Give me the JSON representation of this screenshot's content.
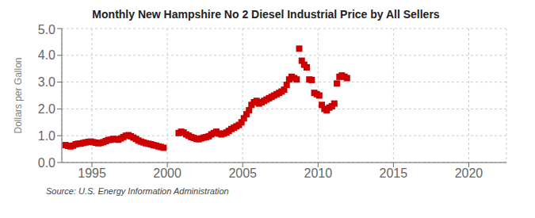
{
  "chart_data": {
    "type": "scatter",
    "title": "Monthly New Hampshire No 2 Diesel Industrial Price by All Sellers",
    "ylabel": "Dollars per Gallon",
    "annotations": [
      "Source: U.S. Energy Information Administration"
    ],
    "color": "#CC0000",
    "marker": "square",
    "grid": true,
    "xlim": [
      1993.0,
      2022.5
    ],
    "xticks": [
      1995,
      2000,
      2005,
      2010,
      2015,
      2020
    ],
    "ylim": [
      0.0,
      5.0
    ],
    "yticks": [
      {
        "value": 0.0,
        "label": "0.0"
      },
      {
        "value": 1.0,
        "label": "1.0"
      },
      {
        "value": 2.0,
        "label": "2.0"
      },
      {
        "value": 3.0,
        "label": "3.0"
      },
      {
        "value": 4.0,
        "label": "4.0"
      },
      {
        "value": 5.0,
        "label": "5.0"
      }
    ],
    "x": [
      1993.25,
      1993.42,
      1993.58,
      1993.75,
      1993.92,
      1994.08,
      1994.25,
      1994.42,
      1994.58,
      1994.75,
      1994.92,
      1995.08,
      1995.25,
      1995.42,
      1995.58,
      1995.75,
      1995.92,
      1996.08,
      1996.25,
      1996.42,
      1996.58,
      1996.75,
      1996.92,
      1997.08,
      1997.25,
      1997.42,
      1997.58,
      1997.75,
      1997.92,
      1998.08,
      1998.25,
      1998.42,
      1998.58,
      1998.75,
      1998.92,
      1999.08,
      1999.25,
      1999.42,
      1999.58,
      1999.75,
      2000.75,
      2000.92,
      2001.08,
      2001.25,
      2001.42,
      2001.58,
      2001.75,
      2001.92,
      2002.08,
      2002.25,
      2002.42,
      2002.58,
      2002.75,
      2002.92,
      2003.08,
      2003.25,
      2003.42,
      2003.58,
      2003.75,
      2003.92,
      2004.08,
      2004.25,
      2004.42,
      2004.58,
      2004.75,
      2004.92,
      2005.08,
      2005.25,
      2005.42,
      2005.58,
      2005.75,
      2005.92,
      2006.08,
      2006.25,
      2006.42,
      2006.58,
      2006.75,
      2006.92,
      2007.08,
      2007.25,
      2007.42,
      2007.58,
      2007.75,
      2007.92,
      2008.08,
      2008.25,
      2008.42,
      2008.58,
      2008.75,
      2008.92,
      2009.08,
      2009.25,
      2009.42,
      2009.58,
      2009.75,
      2009.92,
      2010.08,
      2010.25,
      2010.42,
      2010.58,
      2010.75,
      2010.92,
      2011.08,
      2011.25,
      2011.42,
      2011.58,
      2011.75,
      2011.92
    ],
    "values": [
      0.65,
      0.62,
      0.6,
      0.63,
      0.68,
      0.7,
      0.71,
      0.73,
      0.75,
      0.77,
      0.78,
      0.76,
      0.74,
      0.72,
      0.73,
      0.76,
      0.8,
      0.84,
      0.85,
      0.88,
      0.87,
      0.85,
      0.9,
      0.95,
      1.0,
      1.02,
      0.98,
      0.93,
      0.88,
      0.82,
      0.78,
      0.75,
      0.72,
      0.7,
      0.68,
      0.65,
      0.63,
      0.6,
      0.58,
      0.55,
      1.1,
      1.15,
      1.12,
      1.05,
      1.0,
      0.95,
      0.92,
      0.88,
      0.87,
      0.9,
      0.93,
      0.95,
      0.98,
      1.05,
      1.1,
      1.15,
      1.08,
      1.05,
      1.08,
      1.12,
      1.18,
      1.25,
      1.3,
      1.35,
      1.4,
      1.5,
      1.65,
      1.8,
      1.95,
      2.15,
      2.25,
      2.3,
      2.2,
      2.25,
      2.3,
      2.35,
      2.4,
      2.45,
      2.5,
      2.55,
      2.6,
      2.65,
      2.72,
      2.9,
      3.1,
      3.2,
      3.15,
      3.1,
      4.25,
      3.8,
      3.65,
      3.55,
      3.1,
      3.08,
      2.6,
      2.55,
      2.5,
      2.15,
      2.0,
      1.95,
      2.05,
      2.1,
      2.2,
      2.95,
      3.2,
      3.25,
      3.2,
      3.15
    ]
  }
}
